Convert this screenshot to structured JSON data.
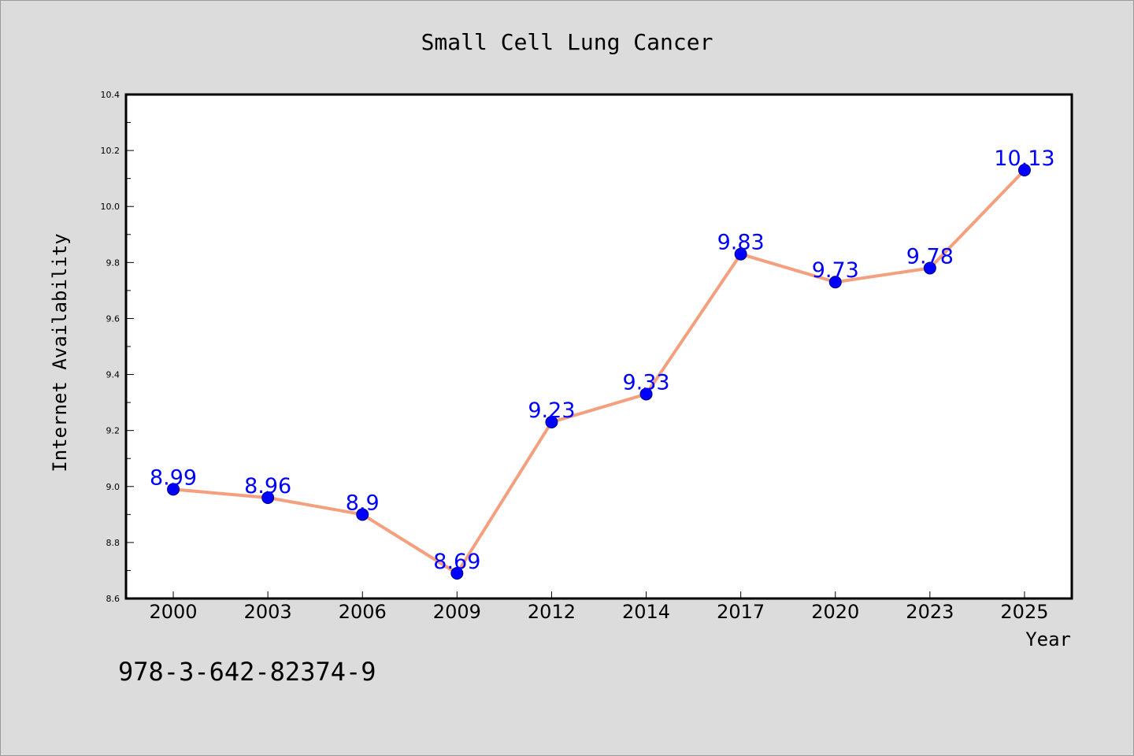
{
  "chart_data": {
    "type": "line",
    "title": "Small Cell Lung Cancer",
    "xlabel": "Year",
    "ylabel": "Internet Availability",
    "categories": [
      "2000",
      "2003",
      "2006",
      "2009",
      "2012",
      "2014",
      "2017",
      "2020",
      "2023",
      "2025"
    ],
    "series": [
      {
        "values": [
          8.99,
          8.96,
          8.9,
          8.69,
          9.23,
          9.33,
          9.83,
          9.73,
          9.78,
          10.13
        ],
        "labels": [
          "8.99",
          "8.96",
          "8.9",
          "8.69",
          "9.23",
          "9.33",
          "9.83",
          "9.73",
          "9.78",
          "10.13"
        ]
      }
    ],
    "ylim": [
      8.6,
      10.4
    ],
    "yticks": [
      "8.6",
      "8.8",
      "9.0",
      "9.2",
      "9.4",
      "9.6",
      "9.8",
      "10.0",
      "10.2",
      "10.4"
    ],
    "grid": false,
    "colors": {
      "line": "#f4a07e",
      "marker": "#0000ff",
      "marker_edge": "#000080",
      "data_label": "#0000ff"
    }
  },
  "footnote": "978-3-642-82374-9"
}
